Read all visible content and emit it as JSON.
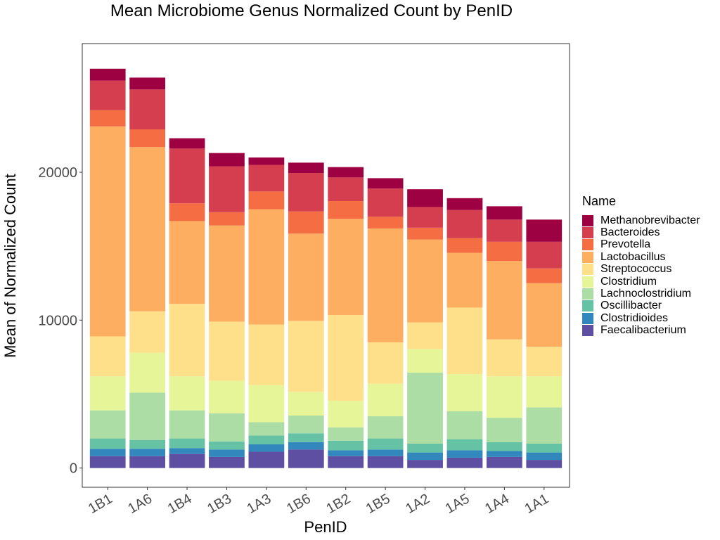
{
  "chart_data": {
    "type": "bar",
    "stacked": true,
    "title": "Mean Microbiome Genus Normalized Count by PenID",
    "xlabel": "PenID",
    "ylabel": "Mean of Normalized Count",
    "ylim": [
      -1300,
      28700
    ],
    "yticks": [
      0,
      10000,
      20000
    ],
    "grid": false,
    "legend_title": "Name",
    "legend_position": "right",
    "categories": [
      "1B1",
      "1A6",
      "1B4",
      "1B3",
      "1A3",
      "1B6",
      "1B2",
      "1B5",
      "1A2",
      "1A5",
      "1A4",
      "1A1"
    ],
    "series": [
      {
        "name": "Faecalibacterium",
        "color": "#5E4FA2",
        "values": [
          800,
          800,
          950,
          750,
          1100,
          1250,
          800,
          800,
          550,
          700,
          750,
          550
        ]
      },
      {
        "name": "Clostridioides",
        "color": "#3288BD",
        "values": [
          500,
          500,
          400,
          500,
          500,
          500,
          400,
          450,
          500,
          500,
          400,
          500
        ]
      },
      {
        "name": "Oscillibacter",
        "color": "#66C2A5",
        "values": [
          700,
          600,
          650,
          550,
          600,
          600,
          650,
          750,
          600,
          750,
          600,
          600
        ]
      },
      {
        "name": "Lachnoclostridium",
        "color": "#ABDDA4",
        "values": [
          1900,
          3200,
          1900,
          1900,
          900,
          1200,
          900,
          1500,
          4800,
          1900,
          1650,
          2450
        ]
      },
      {
        "name": "Clostridium",
        "color": "#E6F598",
        "values": [
          2300,
          2700,
          2300,
          2200,
          2500,
          1600,
          1800,
          2200,
          1600,
          2500,
          2800,
          2100
        ]
      },
      {
        "name": "Streptococcus",
        "color": "#FEE08B",
        "values": [
          2700,
          2800,
          4900,
          4000,
          4100,
          4800,
          5800,
          2800,
          1800,
          4500,
          2500,
          2000
        ]
      },
      {
        "name": "Lactobacillus",
        "color": "#FDAE61",
        "values": [
          14200,
          11100,
          5600,
          6500,
          7800,
          5900,
          6500,
          7700,
          5600,
          3700,
          5300,
          4300
        ]
      },
      {
        "name": "Prevotella",
        "color": "#F46D43",
        "values": [
          1100,
          1200,
          1200,
          900,
          1200,
          1500,
          1200,
          800,
          800,
          1000,
          1300,
          1000
        ]
      },
      {
        "name": "Bacteroides",
        "color": "#D53E4F",
        "values": [
          2000,
          2700,
          3700,
          3100,
          1800,
          2600,
          1600,
          1900,
          1400,
          1900,
          1500,
          1800
        ]
      },
      {
        "name": "Methanobrevibacter",
        "color": "#9E0142",
        "values": [
          800,
          800,
          700,
          900,
          500,
          700,
          700,
          700,
          1200,
          800,
          900,
          1500
        ]
      }
    ]
  }
}
